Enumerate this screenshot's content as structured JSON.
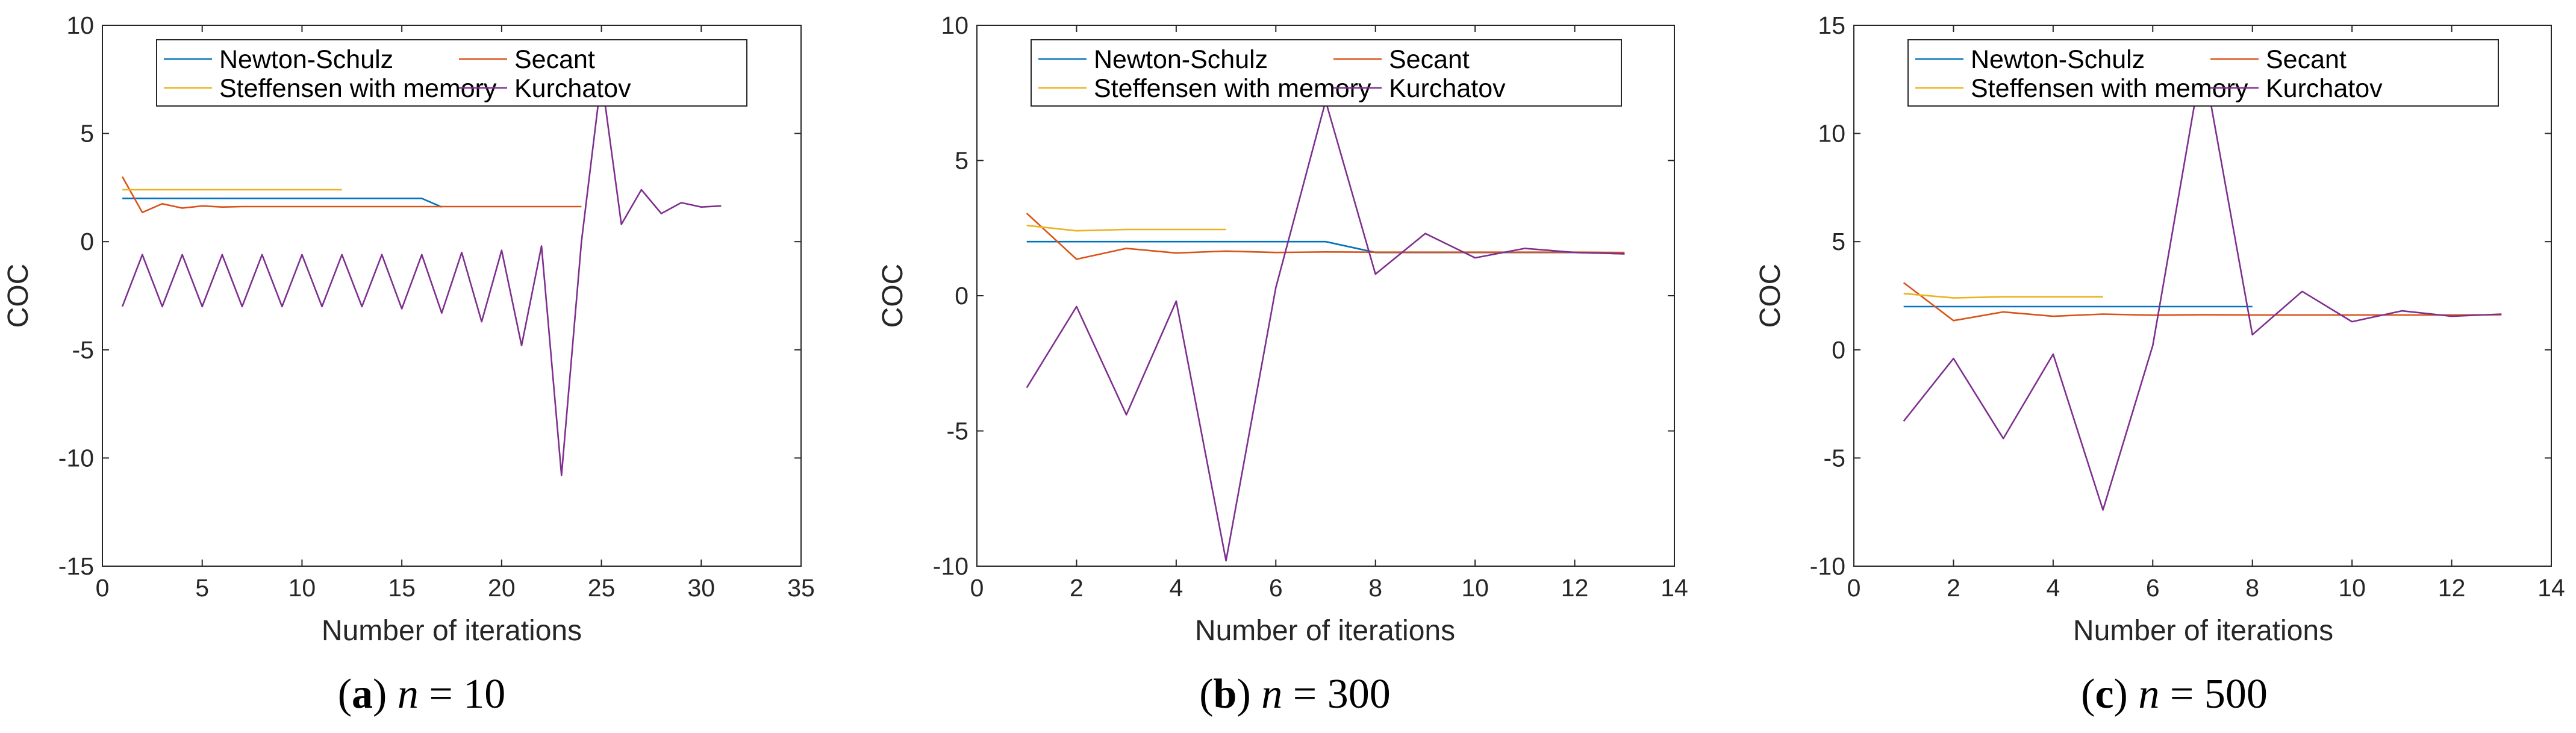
{
  "chart_data": [
    {
      "type": "line",
      "panel_label": "(a)",
      "caption_var": "n",
      "caption_value": "10",
      "xlabel": "Number of iterations",
      "ylabel": "COC",
      "xlim": [
        0,
        35
      ],
      "ylim": [
        -15,
        10
      ],
      "xticks": [
        0,
        5,
        10,
        15,
        20,
        25,
        30,
        35
      ],
      "yticks": [
        -15,
        -10,
        -5,
        0,
        5,
        10
      ],
      "grid": false,
      "legend": "top",
      "series": [
        {
          "name": "Newton-Schulz",
          "color": "#0072bd",
          "x": [
            1,
            2,
            3,
            4,
            5,
            6,
            7,
            8,
            9,
            10,
            11,
            12,
            13,
            14,
            15,
            16,
            17
          ],
          "y": [
            2,
            2,
            2,
            2,
            2,
            2,
            2,
            2,
            2,
            2,
            2,
            2,
            2,
            2,
            2,
            2,
            1.6
          ]
        },
        {
          "name": "Secant",
          "color": "#d95319",
          "x": [
            1,
            2,
            3,
            4,
            5,
            6,
            7,
            8,
            9,
            10,
            11,
            12,
            13,
            14,
            15,
            16,
            17,
            18,
            19,
            20,
            21,
            22,
            23,
            24
          ],
          "y": [
            3,
            1.35,
            1.75,
            1.55,
            1.65,
            1.6,
            1.62,
            1.62,
            1.62,
            1.62,
            1.62,
            1.62,
            1.62,
            1.62,
            1.62,
            1.62,
            1.62,
            1.62,
            1.62,
            1.62,
            1.62,
            1.62,
            1.62,
            1.62
          ]
        },
        {
          "name": "Steffensen with memory",
          "color": "#edb120",
          "x": [
            1,
            2,
            3,
            4,
            5,
            6,
            7,
            8,
            9,
            10,
            11,
            12
          ],
          "y": [
            2.4,
            2.4,
            2.4,
            2.4,
            2.4,
            2.4,
            2.4,
            2.4,
            2.4,
            2.4,
            2.4,
            2.4
          ]
        },
        {
          "name": "Kurchatov",
          "color": "#7e2f8e",
          "x": [
            1,
            2,
            3,
            4,
            5,
            6,
            7,
            8,
            9,
            10,
            11,
            12,
            13,
            14,
            15,
            16,
            17,
            18,
            19,
            20,
            21,
            22,
            23,
            24,
            25,
            26,
            27,
            28,
            29,
            30,
            31
          ],
          "y": [
            -3,
            -0.6,
            -3,
            -0.6,
            -3,
            -0.6,
            -3,
            -0.6,
            -3,
            -0.6,
            -3,
            -0.6,
            -3,
            -0.6,
            -3.1,
            -0.6,
            -3.3,
            -0.5,
            -3.7,
            -0.4,
            -4.8,
            -0.2,
            -10.8,
            0,
            7.6,
            0.8,
            2.4,
            1.3,
            1.8,
            1.6,
            1.65
          ]
        }
      ]
    },
    {
      "type": "line",
      "panel_label": "(b)",
      "caption_var": "n",
      "caption_value": "300",
      "xlabel": "Number of iterations",
      "ylabel": "COC",
      "xlim": [
        0,
        14
      ],
      "ylim": [
        -10,
        10
      ],
      "xticks": [
        0,
        2,
        4,
        6,
        8,
        10,
        12,
        14
      ],
      "yticks": [
        -10,
        -5,
        0,
        5,
        10
      ],
      "grid": false,
      "legend": "top",
      "series": [
        {
          "name": "Newton-Schulz",
          "color": "#0072bd",
          "x": [
            1,
            2,
            3,
            4,
            5,
            6,
            7,
            8,
            9,
            10,
            11,
            12,
            13
          ],
          "y": [
            2,
            2,
            2,
            2,
            2,
            2,
            2,
            1.6,
            1.6,
            1.6,
            1.6,
            1.6,
            1.55
          ]
        },
        {
          "name": "Secant",
          "color": "#d95319",
          "x": [
            1,
            2,
            3,
            4,
            5,
            6,
            7,
            8,
            9,
            10,
            11,
            12,
            13
          ],
          "y": [
            3.05,
            1.35,
            1.75,
            1.58,
            1.65,
            1.6,
            1.62,
            1.61,
            1.61,
            1.61,
            1.61,
            1.61,
            1.6
          ]
        },
        {
          "name": "Steffensen with memory",
          "color": "#edb120",
          "x": [
            1,
            2,
            3,
            4,
            5
          ],
          "y": [
            2.6,
            2.4,
            2.45,
            2.45,
            2.45
          ]
        },
        {
          "name": "Kurchatov",
          "color": "#7e2f8e",
          "x": [
            1,
            2,
            3,
            4,
            5,
            6,
            7,
            8,
            9,
            10,
            11,
            12,
            13
          ],
          "y": [
            -3.4,
            -0.4,
            -4.4,
            -0.2,
            -9.8,
            0.3,
            7.2,
            0.8,
            2.3,
            1.4,
            1.75,
            1.6,
            1.55
          ]
        }
      ]
    },
    {
      "type": "line",
      "panel_label": "(c)",
      "caption_var": "n",
      "caption_value": "500",
      "xlabel": "Number of iterations",
      "ylabel": "COC",
      "xlim": [
        0,
        14
      ],
      "ylim": [
        -10,
        15
      ],
      "xticks": [
        0,
        2,
        4,
        6,
        8,
        10,
        12,
        14
      ],
      "yticks": [
        -10,
        -5,
        0,
        5,
        10,
        15
      ],
      "grid": false,
      "legend": "top",
      "series": [
        {
          "name": "Newton-Schulz",
          "color": "#0072bd",
          "x": [
            1,
            2,
            3,
            4,
            5,
            6,
            7,
            8
          ],
          "y": [
            2,
            2,
            2,
            2,
            2,
            2,
            2,
            2
          ]
        },
        {
          "name": "Secant",
          "color": "#d95319",
          "x": [
            1,
            2,
            3,
            4,
            5,
            6,
            7,
            8,
            9,
            10,
            11,
            12,
            13
          ],
          "y": [
            3.1,
            1.35,
            1.75,
            1.55,
            1.65,
            1.6,
            1.62,
            1.61,
            1.61,
            1.61,
            1.61,
            1.61,
            1.62
          ]
        },
        {
          "name": "Steffensen with memory",
          "color": "#edb120",
          "x": [
            1,
            2,
            3,
            4,
            5
          ],
          "y": [
            2.6,
            2.4,
            2.45,
            2.45,
            2.45
          ]
        },
        {
          "name": "Kurchatov",
          "color": "#7e2f8e",
          "x": [
            1,
            2,
            3,
            4,
            5,
            6,
            7,
            8,
            9,
            10,
            11,
            12,
            13
          ],
          "y": [
            -3.3,
            -0.4,
            -4.1,
            -0.2,
            -7.4,
            0.2,
            13.5,
            0.7,
            2.7,
            1.3,
            1.8,
            1.55,
            1.65
          ]
        }
      ]
    }
  ]
}
